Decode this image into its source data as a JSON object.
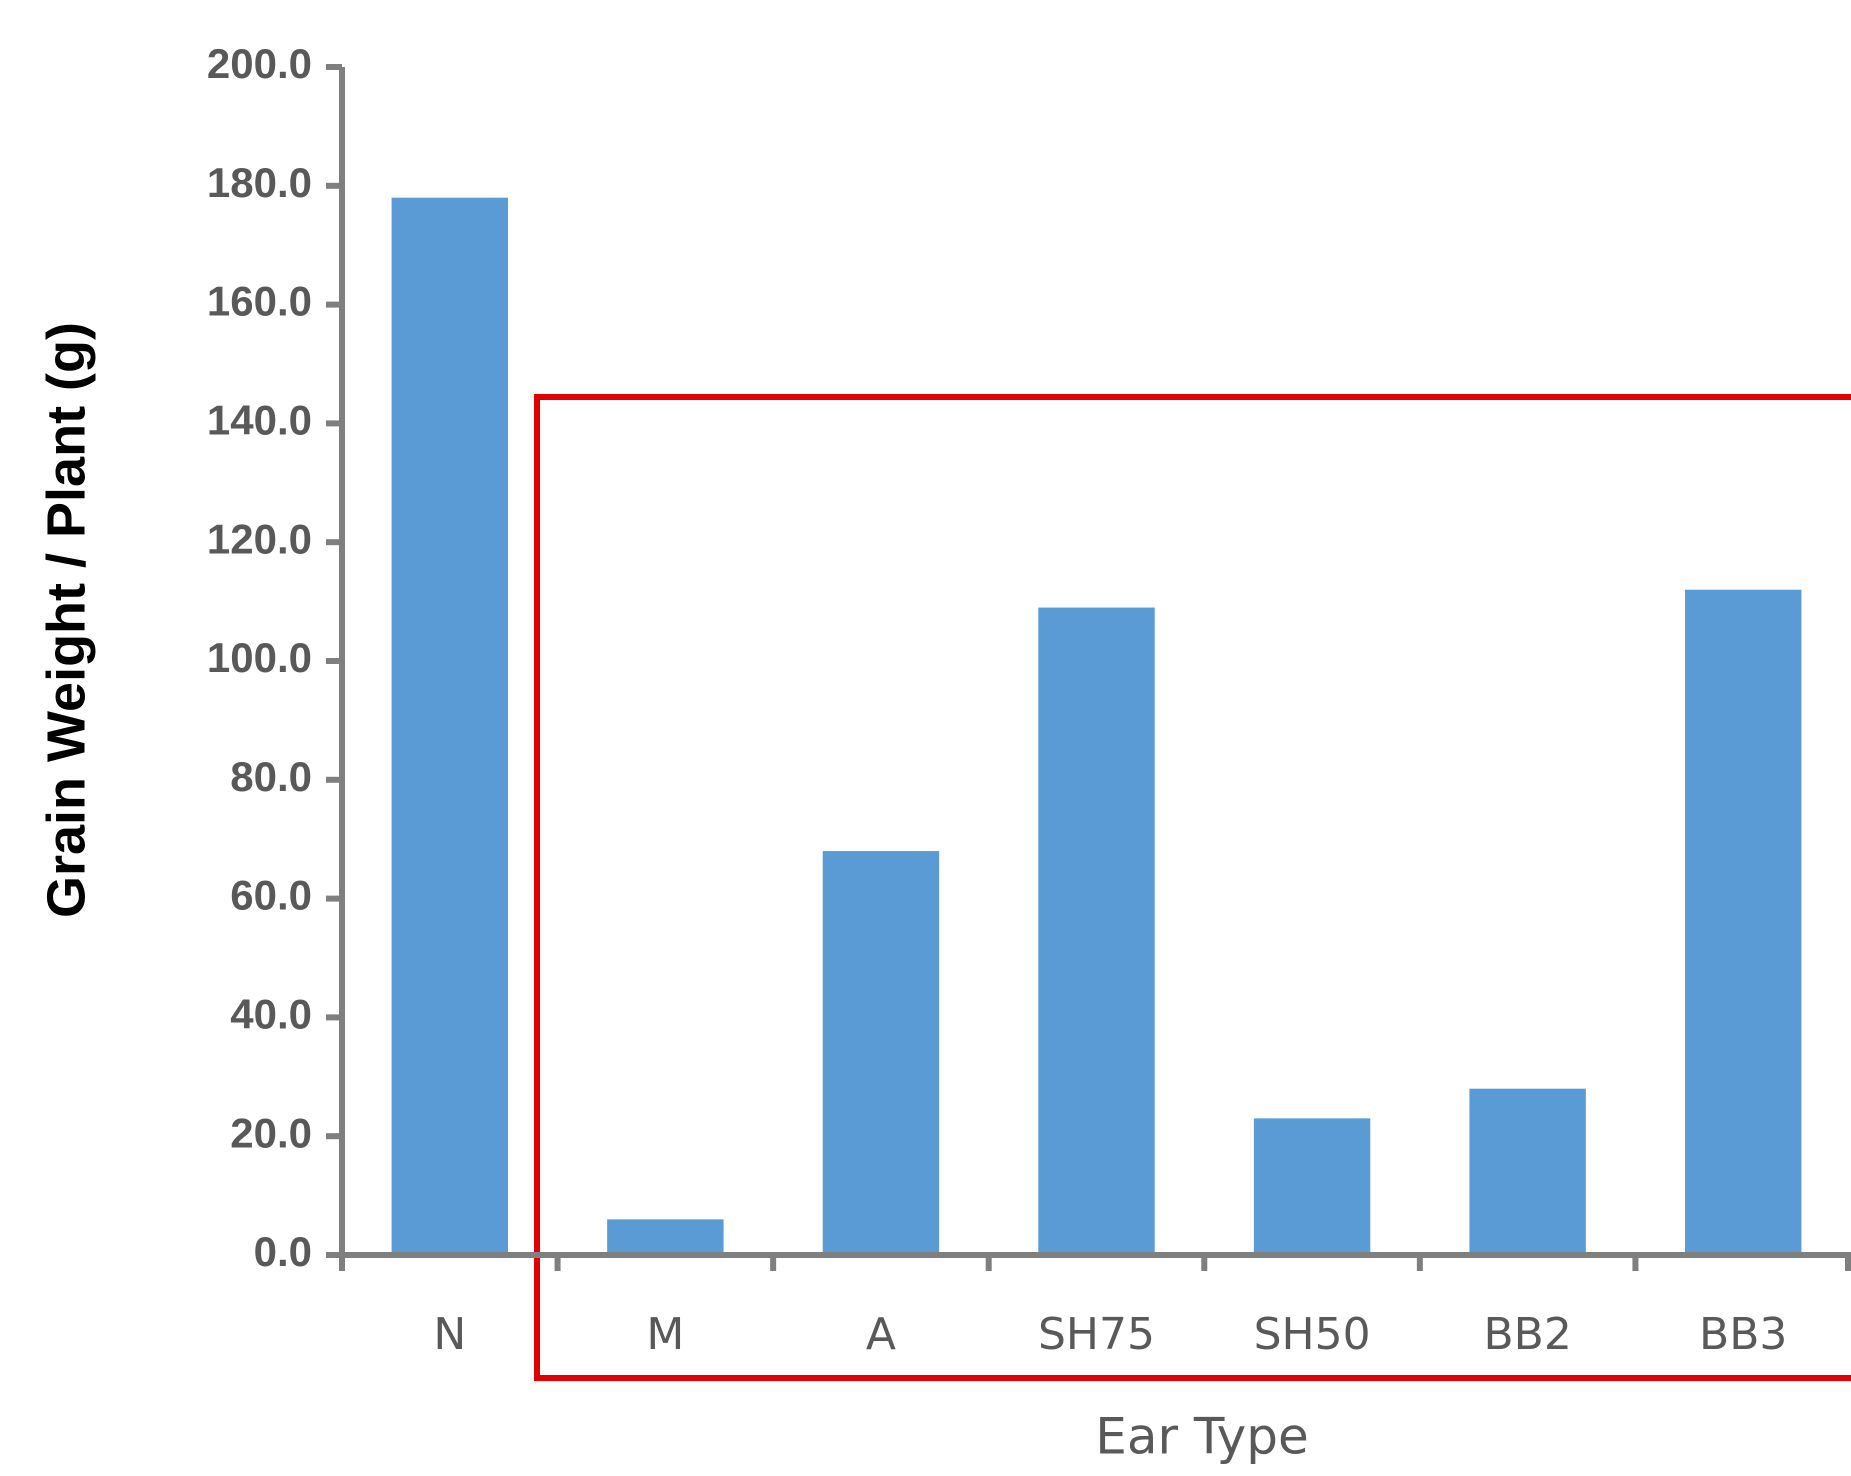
{
  "chart_data": {
    "type": "bar",
    "y_label": "Grain Weight / Plant (g)",
    "x_label": "Ear Type",
    "categories": [
      "N",
      "M",
      "A",
      "SH75",
      "SH50",
      "BB2",
      "BB3"
    ],
    "values": [
      178,
      6,
      68,
      109,
      23,
      28,
      112
    ],
    "color": "#5b9bd5",
    "ylim": [
      0,
      200
    ],
    "yticks": [
      {
        "value": 0,
        "label": "0.0"
      },
      {
        "value": 20,
        "label": "20.0"
      },
      {
        "value": 40,
        "label": "40.0"
      },
      {
        "value": 60,
        "label": "60.0"
      },
      {
        "value": 80,
        "label": "80.0"
      },
      {
        "value": 100,
        "label": "100.0"
      },
      {
        "value": 120,
        "label": "120.0"
      },
      {
        "value": 140,
        "label": "140.0"
      },
      {
        "value": 160,
        "label": "160.0"
      },
      {
        "value": 180,
        "label": "180.0"
      },
      {
        "value": 200,
        "label": "200.0"
      }
    ],
    "grid": false
  }
}
